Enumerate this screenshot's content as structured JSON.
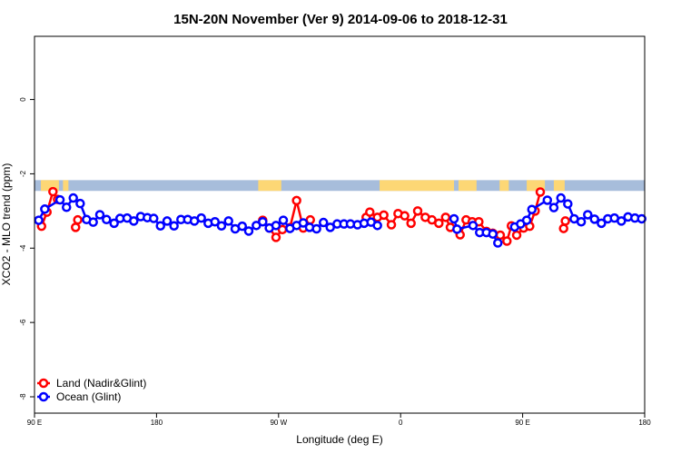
{
  "chart_data": {
    "type": "line",
    "title": "15N-20N November (Ver 9)   2014-09-06 to 2018-12-31",
    "xlabel": "Longitude (deg E)",
    "ylabel": "XCO2 - MLO trend (ppm)",
    "xlim": [
      90,
      540
    ],
    "ylim": [
      -8.44,
      1.7
    ],
    "x_ticks": [
      {
        "value": 90,
        "label": "90 E"
      },
      {
        "value": 180,
        "label": "180"
      },
      {
        "value": 270,
        "label": "90 W"
      },
      {
        "value": 360,
        "label": "0"
      },
      {
        "value": 450,
        "label": "90 E"
      },
      {
        "value": 540,
        "label": "180"
      }
    ],
    "y_ticks": [
      {
        "value": 0,
        "label": "0"
      },
      {
        "value": -2,
        "label": "-2"
      },
      {
        "value": -4,
        "label": "-4"
      },
      {
        "value": -6,
        "label": "-6"
      },
      {
        "value": -8,
        "label": "-8"
      }
    ],
    "grid": false,
    "legend_position": "bottom-left",
    "land_mask_band": {
      "y_range": [
        -2.46,
        -2.17
      ],
      "ocean_color": "#a7bddb",
      "land_color": "#fdd775",
      "land_lon_ranges": [
        [
          94.7,
          108
        ],
        [
          111,
          115
        ],
        [
          255,
          272
        ],
        [
          344.5,
          399.4
        ],
        [
          402.7,
          416
        ],
        [
          433,
          439.8
        ],
        [
          453,
          466.4
        ],
        [
          473,
          481
        ]
      ]
    },
    "series": [
      {
        "name": "Land (Nadir&Glint)",
        "color": "#ff0000",
        "gap": 11,
        "points": [
          [
            95.2,
            -3.41
          ],
          [
            99.2,
            -3.03
          ],
          [
            103.6,
            -2.48
          ],
          [
            107,
            -2.69
          ],
          [
            120.3,
            -3.44
          ],
          [
            121.9,
            -3.24
          ],
          [
            258.3,
            -3.25
          ],
          [
            263.2,
            -3.46
          ],
          [
            268.1,
            -3.71
          ],
          [
            272.8,
            -3.5
          ],
          [
            278.4,
            -3.45
          ],
          [
            283.3,
            -2.72
          ],
          [
            288.2,
            -3.46
          ],
          [
            293.4,
            -3.24
          ],
          [
            334.6,
            -3.17
          ],
          [
            337.3,
            -3.03
          ],
          [
            342.9,
            -3.17
          ],
          [
            347.6,
            -3.11
          ],
          [
            353.2,
            -3.37
          ],
          [
            358.1,
            -3.07
          ],
          [
            363,
            -3.13
          ],
          [
            367.7,
            -3.33
          ],
          [
            372.6,
            -3.0
          ],
          [
            378.2,
            -3.17
          ],
          [
            383.1,
            -3.24
          ],
          [
            388.2,
            -3.33
          ],
          [
            393.2,
            -3.17
          ],
          [
            396.7,
            -3.44
          ],
          [
            403.9,
            -3.64
          ],
          [
            408.3,
            -3.24
          ],
          [
            412.8,
            -3.29
          ],
          [
            417.7,
            -3.29
          ],
          [
            423.3,
            -3.55
          ],
          [
            428,
            -3.6
          ],
          [
            433.5,
            -3.65
          ],
          [
            438.4,
            -3.81
          ],
          [
            441.7,
            -3.4
          ],
          [
            445.6,
            -3.65
          ],
          [
            450.7,
            -3.46
          ],
          [
            455.2,
            -3.41
          ],
          [
            459.2,
            -3.0
          ],
          [
            463,
            -2.49
          ],
          [
            480.2,
            -3.47
          ],
          [
            481.5,
            -3.27
          ]
        ]
      },
      {
        "name": "Ocean (Glint)",
        "color": "#0000ff",
        "gap": 12,
        "points": [
          [
            93.1,
            -3.25
          ],
          [
            97.6,
            -2.95
          ],
          [
            108.8,
            -2.7
          ],
          [
            113.6,
            -2.9
          ],
          [
            118.6,
            -2.65
          ],
          [
            123.7,
            -2.8
          ],
          [
            128.4,
            -3.23
          ],
          [
            133.3,
            -3.3
          ],
          [
            138.2,
            -3.1
          ],
          [
            143.1,
            -3.23
          ],
          [
            148.7,
            -3.33
          ],
          [
            153.1,
            -3.2
          ],
          [
            158.3,
            -3.19
          ],
          [
            163.2,
            -3.27
          ],
          [
            168.3,
            -3.15
          ],
          [
            173.2,
            -3.18
          ],
          [
            177.9,
            -3.2
          ],
          [
            182.9,
            -3.4
          ],
          [
            187.8,
            -3.27
          ],
          [
            192.9,
            -3.4
          ],
          [
            198,
            -3.23
          ],
          [
            203,
            -3.23
          ],
          [
            207.9,
            -3.27
          ],
          [
            213,
            -3.19
          ],
          [
            218.1,
            -3.33
          ],
          [
            223.1,
            -3.29
          ],
          [
            227.9,
            -3.4
          ],
          [
            233.1,
            -3.27
          ],
          [
            238,
            -3.48
          ],
          [
            243.2,
            -3.41
          ],
          [
            248,
            -3.54
          ],
          [
            253.6,
            -3.39
          ],
          [
            258.3,
            -3.29
          ],
          [
            263.2,
            -3.46
          ],
          [
            268.1,
            -3.39
          ],
          [
            273.5,
            -3.25
          ],
          [
            278.4,
            -3.47
          ],
          [
            283.3,
            -3.39
          ],
          [
            288.2,
            -3.32
          ],
          [
            292.9,
            -3.44
          ],
          [
            298,
            -3.48
          ],
          [
            303.1,
            -3.31
          ],
          [
            308.1,
            -3.44
          ],
          [
            313.2,
            -3.35
          ],
          [
            318.2,
            -3.35
          ],
          [
            323,
            -3.35
          ],
          [
            328.2,
            -3.37
          ],
          [
            333.1,
            -3.33
          ],
          [
            338.2,
            -3.3
          ],
          [
            342.9,
            -3.39
          ],
          [
            399.4,
            -3.21
          ],
          [
            401.6,
            -3.49
          ],
          [
            413.4,
            -3.39
          ],
          [
            418.3,
            -3.58
          ],
          [
            423.3,
            -3.58
          ],
          [
            428,
            -3.62
          ],
          [
            431.7,
            -3.86
          ],
          [
            444.1,
            -3.43
          ],
          [
            448.5,
            -3.35
          ],
          [
            453,
            -3.25
          ],
          [
            456.8,
            -2.96
          ],
          [
            468.2,
            -2.71
          ],
          [
            473,
            -2.91
          ],
          [
            478.2,
            -2.65
          ],
          [
            483.3,
            -2.81
          ],
          [
            488,
            -3.21
          ],
          [
            493.2,
            -3.29
          ],
          [
            498,
            -3.1
          ],
          [
            503,
            -3.22
          ],
          [
            508.1,
            -3.33
          ],
          [
            512.8,
            -3.21
          ],
          [
            517.7,
            -3.19
          ],
          [
            522.8,
            -3.27
          ],
          [
            527.7,
            -3.16
          ],
          [
            532.8,
            -3.19
          ],
          [
            537.8,
            -3.21
          ]
        ]
      }
    ]
  }
}
